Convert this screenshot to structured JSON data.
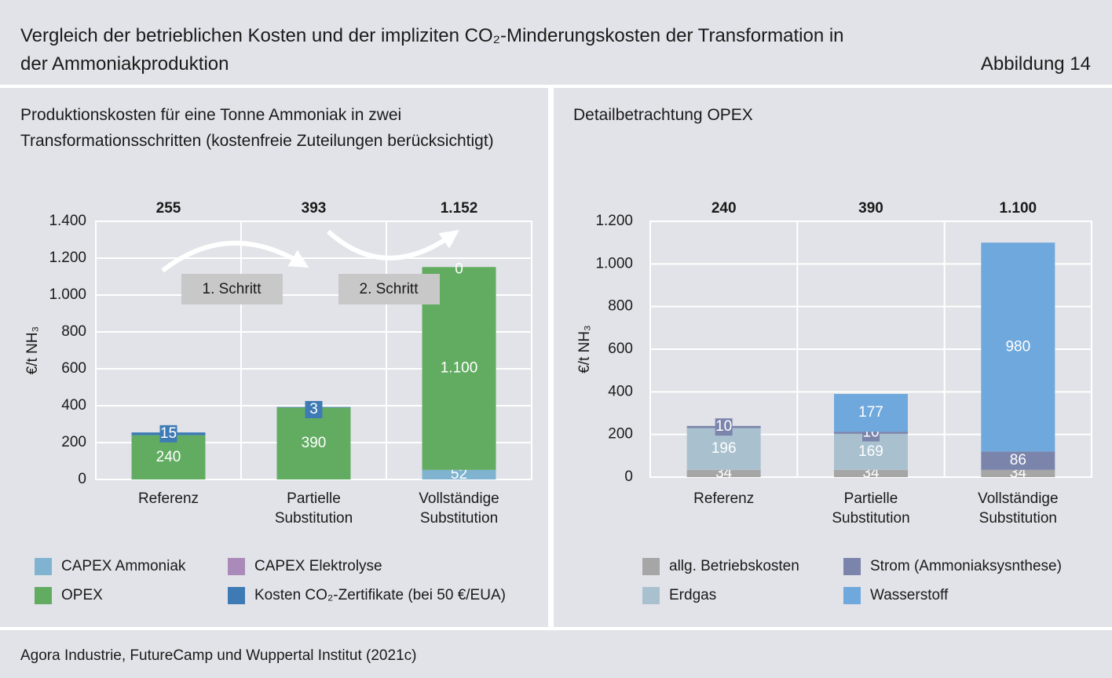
{
  "header": {
    "title": "Vergleich der betrieblichen Kosten  und der impliziten CO₂-Minderungskosten der Transformation in der Ammoniakproduktion",
    "figure_label": "Abbildung 14"
  },
  "source": "Agora Industrie, FutureCamp und Wuppertal Institut (2021c)",
  "chart_data": [
    {
      "type": "bar",
      "stacked": true,
      "title": "Produktionskosten für eine Tonne Ammoniak in zwei Transformationsschritten (kostenfreie Zuteilungen berücksichtigt)",
      "y_label": "€/t NH₃",
      "categories": [
        "Referenz",
        "Partielle Substitution",
        "Vollständige Substitution"
      ],
      "series": [
        {
          "name": "CAPEX Ammoniak",
          "color": "#7fb3cf",
          "values": [
            0,
            0,
            52
          ],
          "value_labels": [
            null,
            null,
            "52"
          ]
        },
        {
          "name": "OPEX",
          "color": "#62ac62",
          "values": [
            240,
            390,
            1100
          ],
          "value_labels": [
            "240",
            "390",
            "1.100"
          ]
        },
        {
          "name": "CAPEX Elektrolyse",
          "color": "#a98ab8",
          "values": [
            0,
            0,
            0
          ],
          "value_labels": [
            null,
            null,
            null
          ]
        },
        {
          "name": "Kosten CO₂-Zertifikate (bei 50 €/EUA)",
          "color": "#3e7bb5",
          "values": [
            15,
            3,
            0
          ],
          "value_labels": [
            "15",
            "3",
            "0"
          ],
          "boxed_labels": true
        }
      ],
      "totals": [
        255,
        393,
        {
          "value": 1152,
          "label": "1.152"
        }
      ],
      "annotations": [
        "1. Schritt",
        "2. Schritt"
      ],
      "ylim": [
        0,
        1400
      ],
      "yticks": [
        0,
        200,
        400,
        600,
        800,
        {
          "value": 1000,
          "label": "1.000"
        },
        {
          "value": 1200,
          "label": "1.200"
        },
        {
          "value": 1400,
          "label": "1.400"
        }
      ],
      "grid": true
    },
    {
      "type": "bar",
      "stacked": true,
      "title": "Detailbetrachtung OPEX",
      "y_label": "€/t NH₃",
      "categories": [
        "Referenz",
        "Partielle Substitution",
        "Vollständige Substitution"
      ],
      "series": [
        {
          "name": "allg. Betriebskosten",
          "color": "#a6a6a6",
          "values": [
            34,
            34,
            34
          ]
        },
        {
          "name": "Erdgas",
          "color": "#a9c1cf",
          "values": [
            196,
            169,
            0
          ]
        },
        {
          "name": "Strom (Ammoniaksysnthese)",
          "color": "#7b84ab",
          "values": [
            10,
            10,
            86
          ],
          "boxed_labels": true
        },
        {
          "name": "Wasserstoff",
          "color": "#6fa8dc",
          "values": [
            0,
            177,
            980
          ]
        }
      ],
      "totals": [
        240,
        390,
        {
          "value": 1100,
          "label": "1.100"
        }
      ],
      "ylim": [
        0,
        1200
      ],
      "yticks": [
        0,
        200,
        400,
        600,
        800,
        {
          "value": 1000,
          "label": "1.000"
        },
        {
          "value": 1200,
          "label": "1.200"
        }
      ],
      "grid": true
    }
  ]
}
